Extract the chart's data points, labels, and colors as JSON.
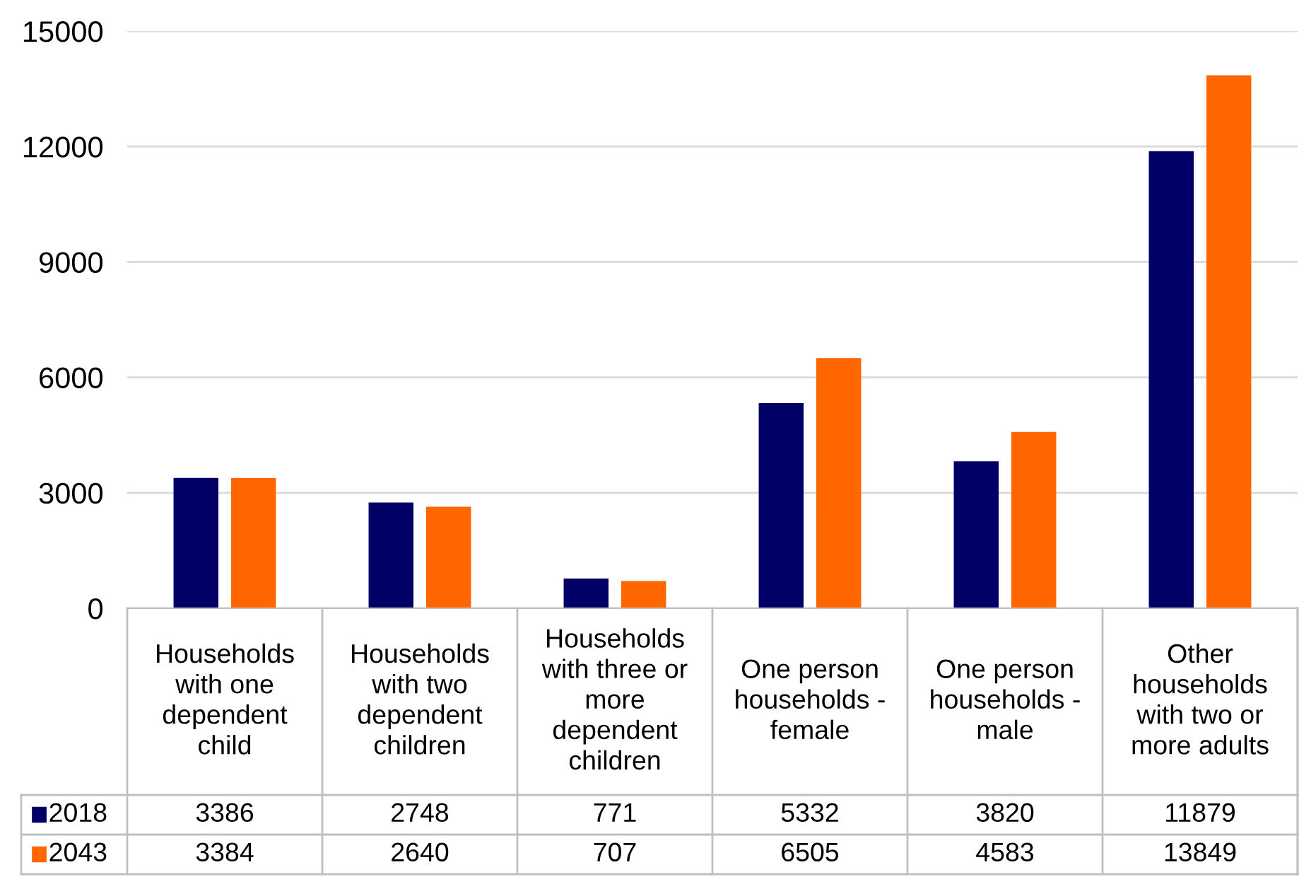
{
  "chart_data": {
    "type": "bar",
    "categories": [
      "Households\nwith one\ndependent\nchild",
      "Households\nwith two\ndependent\nchildren",
      "Households\nwith three or\nmore\ndependent\nchildren",
      "One person\nhouseholds -\nfemale",
      "One person\nhouseholds -\nmale",
      "Other\nhouseholds\nwith two or\nmore adults"
    ],
    "series": [
      {
        "name": "2018",
        "color": "#000066",
        "values": [
          3386,
          2748,
          771,
          5332,
          3820,
          11879
        ]
      },
      {
        "name": "2043",
        "color": "#ff6600",
        "values": [
          3384,
          2640,
          707,
          6505,
          4583,
          13849
        ]
      }
    ],
    "ylim": [
      0,
      15000
    ],
    "yticks": [
      0,
      3000,
      6000,
      9000,
      12000,
      15000
    ],
    "grid": "y",
    "legend": "bottom",
    "data_labels": true
  }
}
